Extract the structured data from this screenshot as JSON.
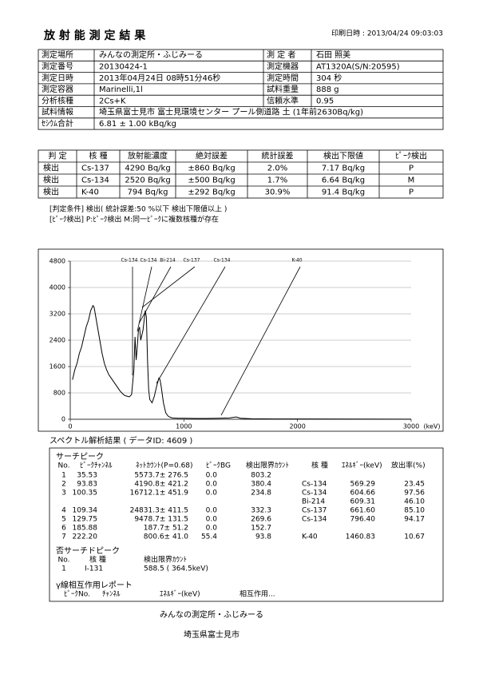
{
  "header": {
    "title": "放 射 能 測 定 結 果",
    "print_date": "印刷日時 : 2013/04/24 09:03:03"
  },
  "info": {
    "rows": [
      [
        "測定場所",
        "みんなの測定所・ふじみーる",
        "測 定 者",
        "石田 照美"
      ],
      [
        "測定番号",
        "20130424-1",
        "測定機器",
        "AT1320A(S/N:20595)"
      ],
      [
        "測定日時",
        "2013年04月24日 08時51分46秒",
        "測定時間",
        "304 秒"
      ],
      [
        "測定容器",
        "Marinelli,1l",
        "試料重量",
        "888 g"
      ],
      [
        "分析核種",
        "2Cs+K",
        "信頼水準",
        "0.95"
      ],
      [
        "試料情報",
        "埼玉県富士見市 富士見環境センター プール側道路 土 (1年前2630Bq/kg)"
      ],
      [
        "ｾｼｳﾑ合計",
        "6.81 ± 1.00 kBq/kg"
      ]
    ]
  },
  "results": {
    "header": [
      "判 定",
      "核 種",
      "放射能濃度",
      "絶対誤差",
      "統計誤差",
      "検出下限値",
      "ﾋﾟｰｸ検出"
    ],
    "rows": [
      [
        "検出",
        "Cs-137",
        "4290 Bq/kg",
        "±860 Bq/kg",
        "2.0%",
        "7.17 Bq/kg",
        "P"
      ],
      [
        "検出",
        "Cs-134",
        "2520 Bq/kg",
        "±500 Bq/kg",
        "1.7%",
        "6.64 Bq/kg",
        "M"
      ],
      [
        "検出",
        "K-40",
        "794 Bq/kg",
        "±292 Bq/kg",
        "30.9%",
        "91.4 Bq/kg",
        "P"
      ]
    ]
  },
  "notes": [
    "[判定条件] 検出( 統計誤差:50 %以下 検出下限値以上 )",
    "[ﾋﾟｰｸ検出] P:ﾋﾟｰｸ検出 M:同一ﾋﾟｰｸに複数核種が存在"
  ],
  "chart_data": {
    "type": "line",
    "color": "#000000",
    "x_unit": "(keV)",
    "x": [
      20,
      40,
      60,
      80,
      100,
      120,
      140,
      160,
      180,
      200,
      210,
      220,
      240,
      260,
      280,
      300,
      320,
      340,
      360,
      380,
      400,
      420,
      440,
      460,
      480,
      500,
      520,
      540,
      560,
      570,
      580,
      590,
      600,
      610,
      620,
      640,
      660,
      670,
      680,
      690,
      700,
      720,
      740,
      760,
      780,
      790,
      800,
      820,
      840,
      860,
      880,
      900,
      950,
      1000,
      1100,
      1200,
      1300,
      1400,
      1460,
      1500,
      1600,
      1800,
      2000,
      2500,
      3000
    ],
    "values": [
      1200,
      1500,
      1700,
      2000,
      2200,
      2500,
      2800,
      3000,
      3300,
      3450,
      3400,
      3200,
      2800,
      2400,
      2000,
      1700,
      1500,
      1350,
      1250,
      1150,
      1050,
      950,
      850,
      780,
      720,
      700,
      680,
      750,
      1500,
      2500,
      1800,
      2200,
      2700,
      2800,
      2400,
      2700,
      3300,
      3100,
      1800,
      900,
      600,
      500,
      700,
      1000,
      1250,
      1200,
      1000,
      500,
      200,
      100,
      60,
      40,
      30,
      30,
      25,
      25,
      30,
      40,
      70,
      30,
      15,
      10,
      8,
      5,
      3
    ],
    "xlim": [
      0,
      3000
    ],
    "ylim": [
      0,
      4800
    ],
    "xticks": [
      0,
      1000,
      2000,
      3000
    ],
    "yticks": [
      0,
      800,
      1600,
      2400,
      3200,
      4000,
      4800
    ],
    "grid": true,
    "peak_labels": [
      "Cs-134",
      "Cs-134",
      "Bi-214",
      "Cs-137",
      "Cs-134",
      "K-40"
    ]
  },
  "analysis": {
    "caption": "スペクトル解析結果 ( データID: 4609 )",
    "search": {
      "title": "サーチピーク",
      "header": [
        "No.",
        "ﾋﾟｰｸﾁｬﾝﾈﾙ",
        "ﾈｯﾄｶｳﾝﾄ(P=0.68)",
        "ﾋﾟｰｸBG",
        "検出限界ｶｳﾝﾄ",
        "核 種",
        "ｴﾈﾙｷﾞｰ(keV)",
        "放出率(%)"
      ],
      "rows": [
        {
          "no": "1",
          "channel": "35.53",
          "net": "5573.7± 276.5",
          "bg": "0.0",
          "limit": "803.2",
          "nuclides": []
        },
        {
          "no": "2",
          "channel": "93.83",
          "net": "4190.8± 421.2",
          "bg": "0.0",
          "limit": "380.4",
          "nuclides": [
            [
              "Cs-134",
              "569.29",
              "23.45"
            ]
          ]
        },
        {
          "no": "3",
          "channel": "100.35",
          "net": "16712.1± 451.9",
          "bg": "0.0",
          "limit": "234.8",
          "nuclides": [
            [
              "Cs-134",
              "604.66",
              "97.56"
            ],
            [
              "Bi-214",
              "609.31",
              "46.10"
            ]
          ]
        },
        {
          "no": "4",
          "channel": "109.34",
          "net": "24831.3± 411.5",
          "bg": "0.0",
          "limit": "332.3",
          "nuclides": [
            [
              "Cs-137",
              "661.60",
              "85.10"
            ]
          ]
        },
        {
          "no": "5",
          "channel": "129.75",
          "net": "9478.7± 131.5",
          "bg": "0.0",
          "limit": "269.6",
          "nuclides": [
            [
              "Cs-134",
              "796.40",
              "94.17"
            ]
          ]
        },
        {
          "no": "6",
          "channel": "185.88",
          "net": "187.7± 51.2",
          "bg": "0.0",
          "limit": "152.7",
          "nuclides": []
        },
        {
          "no": "7",
          "channel": "222.20",
          "net": "800.6± 41.0",
          "bg": "55.4",
          "limit": "93.8",
          "nuclides": [
            [
              "K-40",
              "1460.83",
              "10.67"
            ]
          ]
        }
      ]
    },
    "nonsearch": {
      "title": "否サーチドピーク",
      "header": [
        "No.",
        "核 種",
        "検出限界ｶｳﾝﾄ"
      ],
      "rows": [
        [
          "1",
          "I-131",
          "588.5 ( 364.5keV)"
        ]
      ]
    },
    "gamma": {
      "title": "γ線相互作用レポート",
      "header": [
        "ﾋﾟｰｸNo.",
        "ﾁｬﾝﾈﾙ",
        "ｴﾈﾙｷﾞｰ(keV)",
        "相互作用..."
      ]
    }
  },
  "footer": [
    "みんなの測定所・ふじみーる",
    "埼玉県富士見市"
  ]
}
